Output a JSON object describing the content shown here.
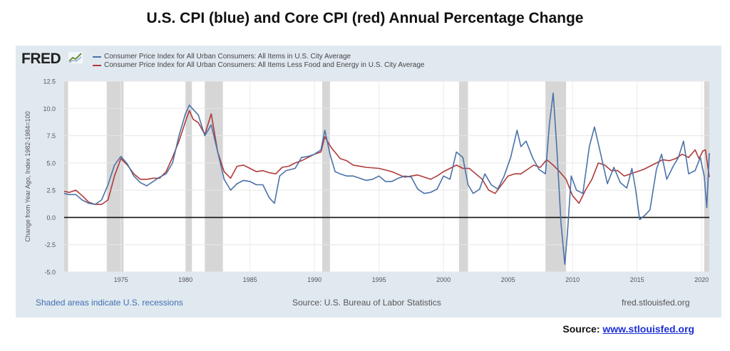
{
  "header": {
    "title": "U.S. CPI (blue) and Core CPI (red) Annual Percentage Change"
  },
  "fred": {
    "logo": "FRED",
    "recession_note": "Shaded areas indicate U.S. recessions",
    "source_note": "Source: U.S. Bureau of Labor Statistics",
    "site": "fred.stlouisfed.org"
  },
  "source_line": {
    "label": "Source:",
    "link": "www.stlouisfed.org"
  },
  "colors": {
    "cpi": "#4b72a8",
    "core": "#b03a3a",
    "recession": "#d6d6d6",
    "panel": "#e1e9f0"
  },
  "chart_data": {
    "type": "line",
    "title": "",
    "xlabel": "",
    "ylabel": "Change from Year Ago, Index 1982-1984=100",
    "xlim": [
      1970.6,
      2020.6
    ],
    "ylim": [
      -5.0,
      12.5
    ],
    "yticks": [
      "12.5",
      "10.0",
      "7.5",
      "5.0",
      "2.5",
      "0.0",
      "-2.5",
      "-5.0"
    ],
    "ytick_values": [
      12.5,
      10.0,
      7.5,
      5.0,
      2.5,
      0.0,
      -2.5,
      -5.0
    ],
    "xticks": [
      "1975",
      "1980",
      "1985",
      "1990",
      "1995",
      "2000",
      "2005",
      "2010",
      "2015",
      "2020"
    ],
    "xtick_values": [
      1975,
      1980,
      1985,
      1990,
      1995,
      2000,
      2005,
      2010,
      2015,
      2020
    ],
    "grid": true,
    "legend_position": "top-left",
    "recessions": [
      [
        1970.0,
        1970.9
      ],
      [
        1973.9,
        1975.2
      ],
      [
        1980.0,
        1980.5
      ],
      [
        1981.5,
        1982.9
      ],
      [
        1990.6,
        1991.2
      ],
      [
        2001.2,
        2001.9
      ],
      [
        2007.9,
        2009.5
      ],
      [
        2020.2,
        2020.6
      ]
    ],
    "series": [
      {
        "name": "Consumer Price Index for All Urban Consumers: All Items in U.S. City Average",
        "color": "#4b72a8",
        "x": [
          1970.6,
          1971.0,
          1971.5,
          1972.0,
          1972.5,
          1973.0,
          1973.5,
          1974.0,
          1974.5,
          1975.0,
          1975.5,
          1976.0,
          1976.5,
          1977.0,
          1977.5,
          1978.0,
          1978.5,
          1979.0,
          1979.5,
          1980.0,
          1980.3,
          1980.6,
          1981.0,
          1981.5,
          1982.0,
          1982.5,
          1983.0,
          1983.5,
          1984.0,
          1984.5,
          1985.0,
          1985.5,
          1986.0,
          1986.5,
          1986.9,
          1987.3,
          1987.8,
          1988.5,
          1989.0,
          1989.5,
          1990.0,
          1990.5,
          1990.8,
          1991.2,
          1991.6,
          1992.0,
          1992.5,
          1993.0,
          1993.5,
          1994.0,
          1994.5,
          1995.0,
          1995.5,
          1996.0,
          1996.5,
          1997.0,
          1997.5,
          1998.0,
          1998.5,
          1999.0,
          1999.5,
          2000.0,
          2000.5,
          2001.0,
          2001.5,
          2001.9,
          2002.3,
          2002.8,
          2003.2,
          2003.7,
          2004.2,
          2004.7,
          2005.2,
          2005.7,
          2006.0,
          2006.4,
          2006.9,
          2007.4,
          2007.9,
          2008.2,
          2008.5,
          2008.8,
          2009.1,
          2009.4,
          2009.6,
          2009.9,
          2010.3,
          2010.8,
          2011.3,
          2011.7,
          2012.2,
          2012.7,
          2013.2,
          2013.7,
          2014.2,
          2014.6,
          2014.9,
          2015.2,
          2015.6,
          2016.0,
          2016.5,
          2016.9,
          2017.3,
          2017.8,
          2018.2,
          2018.6,
          2019.0,
          2019.5,
          2019.9,
          2020.2,
          2020.4,
          2020.6
        ],
        "y": [
          2.2,
          2.1,
          2.1,
          1.6,
          1.3,
          1.2,
          1.6,
          3.0,
          4.8,
          5.6,
          4.9,
          3.8,
          3.2,
          2.9,
          3.3,
          3.7,
          4.0,
          5.0,
          7.5,
          9.5,
          10.3,
          9.9,
          9.4,
          7.5,
          8.5,
          6.0,
          3.5,
          2.5,
          3.1,
          3.4,
          3.3,
          3.0,
          3.0,
          1.8,
          1.3,
          3.8,
          4.3,
          4.5,
          5.5,
          5.6,
          5.8,
          6.2,
          8.0,
          5.8,
          4.2,
          4.0,
          3.8,
          3.8,
          3.6,
          3.4,
          3.5,
          3.8,
          3.3,
          3.3,
          3.6,
          3.8,
          3.7,
          2.6,
          2.2,
          2.3,
          2.6,
          3.8,
          3.5,
          6.0,
          5.5,
          3.0,
          2.2,
          2.6,
          4.0,
          3.0,
          2.6,
          3.8,
          5.5,
          8.0,
          6.5,
          7.0,
          5.5,
          4.4,
          4.0,
          8.5,
          11.4,
          6.0,
          -0.5,
          -4.3,
          -1.5,
          3.8,
          2.5,
          2.2,
          6.5,
          8.3,
          5.7,
          3.1,
          4.6,
          3.2,
          2.7,
          4.5,
          2.5,
          -0.2,
          0.2,
          0.7,
          4.4,
          5.8,
          3.5,
          4.7,
          5.5,
          7.0,
          4.0,
          4.3,
          5.5,
          3.8,
          0.9,
          5.9
        ],
        "y_note": "values estimated from gridlines"
      },
      {
        "name": "Consumer Price Index for All Urban Consumers: All Items Less Food and Energy in U.S. City Average",
        "color": "#b03a3a",
        "x": [
          1970.6,
          1971.0,
          1971.5,
          1972.0,
          1972.5,
          1973.0,
          1973.5,
          1974.0,
          1974.5,
          1975.0,
          1975.5,
          1976.0,
          1976.5,
          1977.0,
          1977.5,
          1978.0,
          1978.5,
          1979.0,
          1979.5,
          1980.0,
          1980.3,
          1980.6,
          1981.0,
          1981.5,
          1982.0,
          1982.5,
          1983.0,
          1983.5,
          1984.0,
          1984.5,
          1985.0,
          1985.5,
          1986.0,
          1986.5,
          1987.0,
          1987.5,
          1988.0,
          1988.5,
          1989.0,
          1989.5,
          1990.0,
          1990.5,
          1990.8,
          1991.3,
          1992.0,
          1992.5,
          1993.0,
          1994.0,
          1995.0,
          1996.0,
          1997.0,
          1998.0,
          1999.0,
          1999.5,
          2000.0,
          2000.5,
          2001.0,
          2001.5,
          2002.0,
          2002.5,
          2003.0,
          2003.5,
          2004.0,
          2004.5,
          2005.0,
          2005.5,
          2006.0,
          2006.5,
          2007.0,
          2007.5,
          2008.0,
          2008.5,
          2009.0,
          2009.5,
          2010.0,
          2010.5,
          2011.0,
          2011.5,
          2012.0,
          2012.5,
          2013.0,
          2013.5,
          2014.0,
          2014.5,
          2015.0,
          2015.5,
          2016.0,
          2016.5,
          2017.0,
          2017.5,
          2018.0,
          2018.5,
          2019.0,
          2019.5,
          2019.8,
          2020.1,
          2020.3,
          2020.6
        ],
        "y": [
          2.4,
          2.3,
          2.5,
          2.0,
          1.4,
          1.2,
          1.2,
          1.6,
          3.8,
          5.4,
          4.8,
          4.0,
          3.5,
          3.5,
          3.6,
          3.6,
          4.2,
          5.5,
          7.0,
          8.8,
          9.8,
          9.0,
          8.7,
          7.6,
          9.5,
          6.0,
          4.2,
          3.6,
          4.7,
          4.8,
          4.5,
          4.2,
          4.3,
          4.1,
          4.0,
          4.6,
          4.7,
          5.0,
          5.2,
          5.5,
          5.8,
          6.0,
          7.4,
          6.4,
          5.4,
          5.2,
          4.8,
          4.6,
          4.5,
          4.2,
          3.7,
          3.9,
          3.5,
          3.8,
          4.2,
          4.5,
          4.8,
          4.5,
          4.5,
          4.0,
          3.5,
          2.5,
          2.2,
          3.0,
          3.8,
          4.0,
          4.0,
          4.4,
          4.8,
          4.6,
          5.3,
          4.8,
          4.2,
          3.5,
          2.0,
          1.3,
          2.5,
          3.5,
          5.0,
          4.8,
          4.3,
          4.3,
          3.8,
          4.0,
          4.2,
          4.4,
          4.7,
          5.0,
          5.3,
          5.2,
          5.4,
          5.8,
          5.5,
          6.2,
          5.4,
          6.1,
          6.2,
          3.7
        ],
        "y_note": "values estimated from gridlines"
      }
    ]
  }
}
